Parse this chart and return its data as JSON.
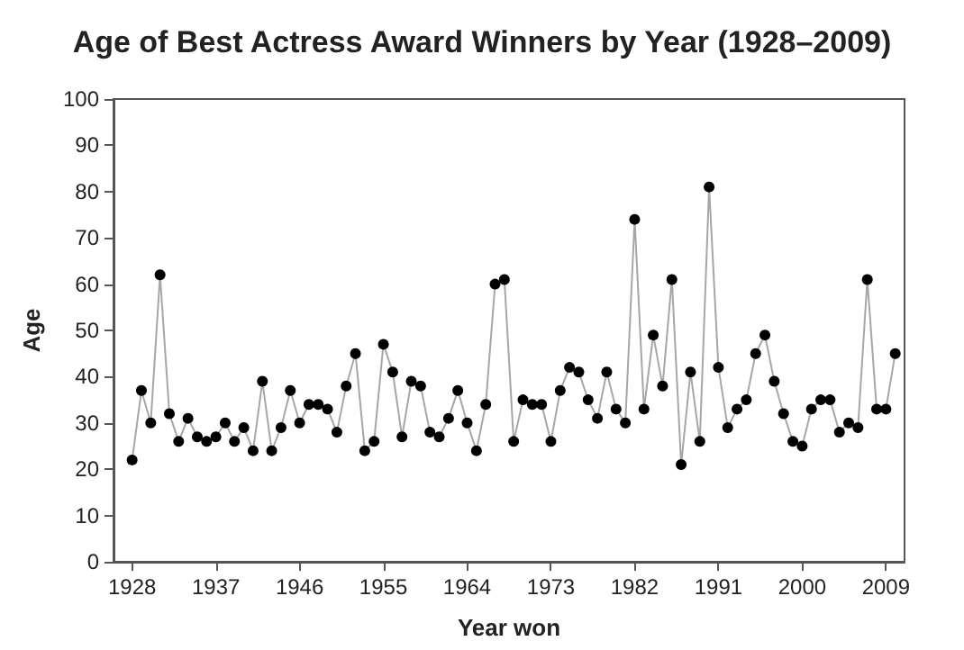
{
  "chart_data": {
    "type": "line",
    "title": "Age of Best Actress Award Winners by Year (1928–2009)",
    "xlabel": "Year won",
    "ylabel": "Age",
    "x": [
      1928,
      1929,
      1930,
      1931,
      1932,
      1933,
      1934,
      1935,
      1936,
      1937,
      1938,
      1939,
      1940,
      1941,
      1942,
      1943,
      1944,
      1945,
      1946,
      1947,
      1948,
      1949,
      1950,
      1951,
      1952,
      1953,
      1954,
      1955,
      1956,
      1957,
      1958,
      1959,
      1960,
      1961,
      1962,
      1963,
      1964,
      1965,
      1966,
      1967,
      1968,
      1969,
      1970,
      1971,
      1972,
      1973,
      1974,
      1975,
      1976,
      1977,
      1978,
      1979,
      1980,
      1981,
      1982,
      1983,
      1984,
      1985,
      1986,
      1987,
      1988,
      1989,
      1990,
      1991,
      1992,
      1993,
      1994,
      1995,
      1996,
      1997,
      1998,
      1999,
      2000,
      2001,
      2002,
      2003,
      2004,
      2005,
      2006,
      2007,
      2008,
      2009,
      2010
    ],
    "series": [
      {
        "color": "#000000",
        "values": [
          22,
          37,
          30,
          62,
          32,
          26,
          31,
          27,
          26,
          27,
          30,
          26,
          29,
          24,
          39,
          24,
          29,
          37,
          30,
          34,
          34,
          33,
          28,
          38,
          45,
          24,
          26,
          47,
          41,
          27,
          39,
          38,
          28,
          27,
          31,
          37,
          30,
          24,
          34,
          60,
          61,
          26,
          35,
          34,
          34,
          26,
          37,
          42,
          41,
          35,
          31,
          41,
          33,
          30,
          74,
          33,
          49,
          38,
          61,
          21,
          41,
          26,
          81,
          42,
          29,
          33,
          35,
          45,
          49,
          39,
          32,
          26,
          25,
          33,
          35,
          35,
          28,
          30,
          29,
          61,
          33,
          33,
          45
        ]
      }
    ],
    "xlim": [
      1926,
      2011
    ],
    "xticks": [
      1928,
      1937,
      1946,
      1955,
      1964,
      1973,
      1982,
      1991,
      2000,
      2009
    ],
    "ylim": [
      0,
      100
    ],
    "yticks": [
      0,
      10,
      20,
      30,
      40,
      50,
      60,
      70,
      80,
      90,
      100
    ],
    "marker": "circle",
    "line_style": "solid"
  }
}
